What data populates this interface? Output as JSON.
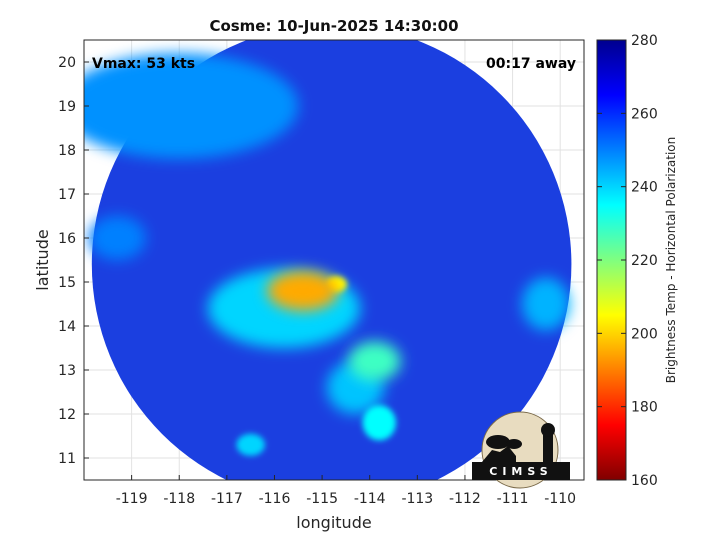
{
  "chart_data": {
    "type": "heatmap",
    "title": "Cosme: 10-Jun-2025 14:30:00",
    "xlabel": "longitude",
    "ylabel": "latitude",
    "xlim": [
      -120,
      -109.5
    ],
    "ylim": [
      10.5,
      20.5
    ],
    "x_ticks": [
      -119,
      -118,
      -117,
      -116,
      -115,
      -114,
      -113,
      -112,
      -111,
      -110
    ],
    "y_ticks": [
      11,
      12,
      13,
      14,
      15,
      16,
      17,
      18,
      19,
      20
    ],
    "grid": true,
    "annotations": {
      "vmax": "Vmax: 53 kts",
      "time_away": "00:17 away"
    },
    "colorbar": {
      "label": "Brightness Temp - Horizontal Polarization",
      "range": [
        160,
        280
      ],
      "ticks": [
        160,
        180,
        200,
        220,
        240,
        260,
        280
      ],
      "colormap": "jet"
    },
    "swath": {
      "center_lon": -114.8,
      "center_lat": 15.4,
      "radius_deg": 5.45
    },
    "features": [
      {
        "lon": -115.4,
        "lat": 14.8,
        "rx": 0.75,
        "ry": 0.45,
        "value": 195
      },
      {
        "lon": -114.7,
        "lat": 14.95,
        "rx": 0.22,
        "ry": 0.18,
        "value": 205
      },
      {
        "lon": -115.8,
        "lat": 14.4,
        "rx": 1.6,
        "ry": 0.9,
        "value": 240
      },
      {
        "lon": -113.9,
        "lat": 13.2,
        "rx": 0.55,
        "ry": 0.45,
        "value": 228
      },
      {
        "lon": -114.3,
        "lat": 12.6,
        "rx": 0.6,
        "ry": 0.6,
        "value": 242
      },
      {
        "lon": -113.8,
        "lat": 11.8,
        "rx": 0.35,
        "ry": 0.4,
        "value": 235
      },
      {
        "lon": -118.0,
        "lat": 19.0,
        "rx": 2.5,
        "ry": 1.2,
        "value": 248
      },
      {
        "lon": -119.3,
        "lat": 16.0,
        "rx": 0.6,
        "ry": 0.5,
        "value": 250
      },
      {
        "lon": -110.3,
        "lat": 14.5,
        "rx": 0.5,
        "ry": 0.6,
        "value": 244
      },
      {
        "lon": -116.5,
        "lat": 11.3,
        "rx": 0.3,
        "ry": 0.25,
        "value": 240
      }
    ]
  },
  "logo": {
    "text": "CIMSS"
  }
}
